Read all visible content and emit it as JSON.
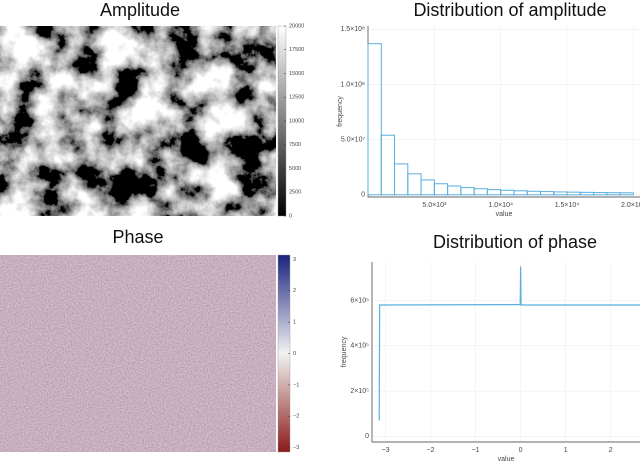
{
  "chart_data": [
    {
      "type": "image",
      "title": "Amplitude",
      "colorbar": {
        "lim": [
          0,
          20000
        ],
        "ticks": [
          0,
          2500,
          5000,
          7500,
          10000,
          12500,
          15000,
          17500,
          20000
        ],
        "colors": [
          "#000000",
          "#ffffff"
        ]
      }
    },
    {
      "type": "histogram",
      "title": "Distribution of amplitude",
      "xlabel": "value",
      "ylabel": "frequency",
      "bins": [
        0,
        1000,
        2000,
        3000,
        4000,
        5000,
        6000,
        7000,
        8000,
        9000,
        10000,
        11000,
        12000,
        13000,
        14000,
        15000,
        16000,
        17000,
        18000,
        19000,
        20000
      ],
      "values": [
        137000000,
        54000000,
        28000000,
        19000000,
        13500000,
        10000000,
        8000000,
        6500000,
        5500000,
        4700000,
        4100000,
        3600000,
        3200000,
        2900000,
        2600000,
        2400000,
        2200000,
        2000000,
        1900000,
        1800000
      ],
      "color": "#5aaee0",
      "xlim": [
        0,
        20500
      ],
      "ylim": [
        -2000000,
        153000000
      ],
      "xticks": [
        {
          "value": 5000,
          "label": "5.0×10³"
        },
        {
          "value": 10000,
          "label": "1.0×10⁴"
        },
        {
          "value": 15000,
          "label": "1.5×10⁴"
        },
        {
          "value": 20000,
          "label": "2.0×10⁴"
        }
      ],
      "yticks": [
        0,
        {
          "value": 50000000,
          "label": "5.0×10⁷"
        },
        {
          "value": 100000000,
          "label": "1.0×10⁸"
        },
        {
          "value": 150000000,
          "label": "1.5×10⁸"
        }
      ],
      "grid": true
    },
    {
      "type": "image",
      "title": "Phase",
      "colorbar": {
        "lim": [
          -3.14,
          3.14
        ],
        "ticks": [
          {
            "value": -3,
            "label": "−3"
          },
          {
            "value": -2,
            "label": "−2"
          },
          {
            "value": -1,
            "label": "−1"
          },
          0,
          1,
          2,
          3
        ],
        "colors": [
          "#8b1a1a",
          "#f2f2f2",
          "#1a237e"
        ]
      }
    },
    {
      "type": "line",
      "title": "Distribution of phase",
      "xlabel": "value",
      "ylabel": "frequency",
      "x": [
        -3.14,
        -3.13,
        -0.01,
        0,
        0.01,
        2.65
      ],
      "values": [
        70000,
        580000,
        582000,
        750000,
        580000,
        580000
      ],
      "color": "#5aaee0",
      "xlim": [
        -3.3,
        2.65
      ],
      "ylim": [
        -25000,
        770000
      ],
      "xticks": [
        {
          "value": -3,
          "label": "−3"
        },
        {
          "value": -2,
          "label": "−2"
        },
        {
          "value": -1,
          "label": "−1"
        },
        0,
        1,
        2
      ],
      "yticks": [
        0,
        {
          "value": 200000,
          "label": "2×10⁵"
        },
        {
          "value": 400000,
          "label": "4×10⁵"
        },
        {
          "value": 600000,
          "label": "6×10⁵"
        }
      ],
      "grid": true
    }
  ]
}
